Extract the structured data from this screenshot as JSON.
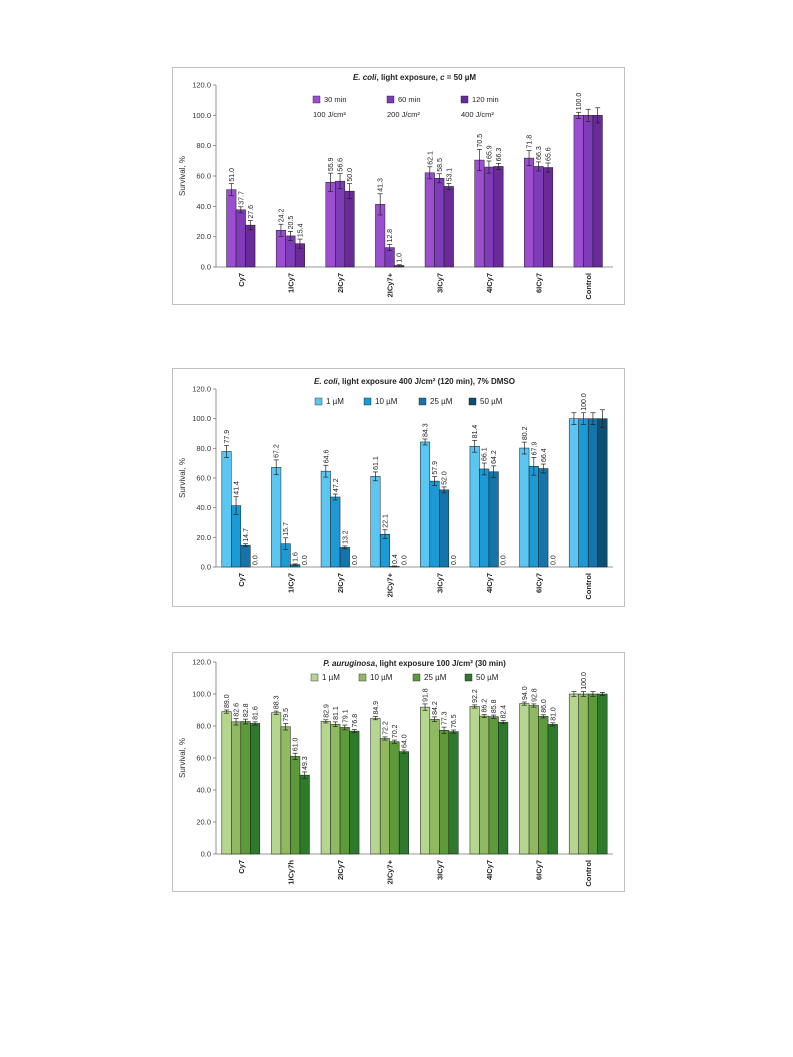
{
  "chart_data": [
    {
      "type": "bar",
      "title_parts": [
        {
          "text": "E. coli",
          "italic": true
        },
        {
          "text": ", light exposure, ",
          "italic": false
        },
        {
          "text": "c",
          "italic": true
        },
        {
          "text": " = 50 µM",
          "italic": false
        }
      ],
      "ylabel": "Survival, %",
      "ylim": [
        0,
        120
      ],
      "yticks": [
        "0.0",
        "20.0",
        "40.0",
        "60.0",
        "80.0",
        "100.0",
        "120.0"
      ],
      "categories": [
        "Cy7",
        "1ICy7",
        "2ICy7",
        "2ICy7+",
        "3ICy7",
        "4ICy7",
        "6ICy7",
        "Control"
      ],
      "series": [
        {
          "name": "30 min",
          "sublabel": "100 J/cm²",
          "color": "#9b4fd0",
          "values": [
            51.0,
            24.2,
            55.9,
            41.3,
            62.1,
            70.5,
            71.8,
            100.0
          ],
          "errors": [
            4.0,
            4.0,
            6.0,
            7.0,
            4.0,
            7.0,
            5.0,
            2.0
          ],
          "labels": [
            "51.0",
            "24.2",
            "55.9",
            "41.3",
            "62.1",
            "70.5",
            "71.8",
            "100.0"
          ]
        },
        {
          "name": "60 min",
          "sublabel": "200 J/cm²",
          "color": "#7e3cb8",
          "values": [
            37.7,
            20.5,
            56.6,
            12.8,
            58.5,
            65.9,
            66.3,
            100.0
          ],
          "errors": [
            2.0,
            3.0,
            5.0,
            2.0,
            3.0,
            4.0,
            3.0,
            4.0
          ],
          "labels": [
            "37.7",
            "20.5",
            "56.6",
            "12.8",
            "58.5",
            "65.9",
            "66.3",
            ""
          ]
        },
        {
          "name": "120 min",
          "sublabel": "400 J/cm²",
          "color": "#6a2a97",
          "values": [
            27.6,
            15.4,
            50.0,
            1.0,
            53.1,
            66.3,
            65.6,
            100.0
          ],
          "errors": [
            3.0,
            3.0,
            5.0,
            0.5,
            2.0,
            2.0,
            3.0,
            5.0
          ],
          "labels": [
            "27.6",
            "15.4",
            "50.0",
            "1.0",
            "53.1",
            "66.3",
            "65.6",
            ""
          ]
        }
      ],
      "legend": "top, inside plot area",
      "grid": false
    },
    {
      "type": "bar",
      "title_parts": [
        {
          "text": "E. coli",
          "italic": true
        },
        {
          "text": ", light exposure 400 J/cm² (120 min), 7% DMSO",
          "italic": false
        }
      ],
      "ylabel": "Survival, %",
      "ylim": [
        0,
        120
      ],
      "yticks": [
        "0.0",
        "20.0",
        "40.0",
        "60.0",
        "80.0",
        "100.0",
        "120.0"
      ],
      "categories": [
        "Cy7",
        "1ICy7",
        "2ICy7",
        "2ICy7+",
        "3ICy7",
        "4ICy7",
        "6ICy7",
        "Control"
      ],
      "series": [
        {
          "name": "1 µM",
          "color": "#5bc6f2",
          "values": [
            77.9,
            67.2,
            64.6,
            61.1,
            84.3,
            81.4,
            80.2,
            100.0
          ],
          "errors": [
            4.0,
            5.0,
            4.0,
            3.0,
            2.0,
            4.0,
            4.0,
            4.0
          ],
          "labels": [
            "77.9",
            "67.2",
            "64.6",
            "61.1",
            "84.3",
            "81.4",
            "80.2",
            ""
          ]
        },
        {
          "name": "10 µM",
          "color": "#1b9ad6",
          "values": [
            41.4,
            15.7,
            47.2,
            22.1,
            57.9,
            66.1,
            67.9,
            100.0
          ],
          "errors": [
            6.0,
            4.0,
            2.0,
            3.0,
            3.0,
            4.0,
            6.0,
            4.0
          ],
          "labels": [
            "41.4",
            "15.7",
            "47.2",
            "22.1",
            "57.9",
            "66.1",
            "67.9",
            "100.0"
          ]
        },
        {
          "name": "25 µM",
          "color": "#1575ab",
          "values": [
            14.7,
            1.6,
            13.2,
            0.4,
            52.0,
            64.2,
            66.4,
            100.0
          ],
          "errors": [
            1.0,
            0.5,
            1.0,
            0.3,
            2.0,
            4.0,
            3.0,
            4.0
          ],
          "labels": [
            "14.7",
            "1.6",
            "13.2",
            "0.4",
            "52.0",
            "64.2",
            "66.4",
            ""
          ]
        },
        {
          "name": "50 µM",
          "color": "#0d4f73",
          "values": [
            0.0,
            0.0,
            0.0,
            0.0,
            0.0,
            0.0,
            0.0,
            100.0
          ],
          "errors": [
            0,
            0,
            0,
            0,
            0,
            0,
            0,
            6.0
          ],
          "labels": [
            "0.0",
            "0.0",
            "0.0",
            "0.0",
            "0.0",
            "0.0",
            "0.0",
            ""
          ]
        }
      ],
      "legend": "top-left, inside plot area",
      "grid": false
    },
    {
      "type": "bar",
      "title_parts": [
        {
          "text": "P. auruginosa",
          "italic": true
        },
        {
          "text": ", light exposure 100 J/cm² (30 min)",
          "italic": false
        }
      ],
      "ylabel": "Survival, %",
      "ylim": [
        0,
        120
      ],
      "yticks": [
        "0.0",
        "20.0",
        "40.0",
        "60.0",
        "80.0",
        "100.0",
        "120.0"
      ],
      "categories": [
        "Cy7",
        "1ICy7h",
        "2ICy7",
        "2ICy7+",
        "3ICy7",
        "4ICy7",
        "6ICy7",
        "Control"
      ],
      "series": [
        {
          "name": "1 µM",
          "color": "#b5d68f",
          "values": [
            89.0,
            88.3,
            82.9,
            84.9,
            91.8,
            92.2,
            94.0,
            100.0
          ],
          "errors": [
            1.0,
            1.0,
            1.0,
            1.0,
            2.0,
            1.0,
            1.0,
            1.5
          ],
          "labels": [
            "89.0",
            "88.3",
            "82.9",
            "84.9",
            "91.8",
            "92.2",
            "94.0",
            ""
          ]
        },
        {
          "name": "10 µM",
          "color": "#8fba62",
          "values": [
            82.6,
            79.5,
            81.1,
            72.2,
            84.2,
            86.2,
            92.8,
            100.0
          ],
          "errors": [
            2.0,
            2.0,
            1.5,
            1.0,
            1.5,
            1.0,
            1.0,
            1.5
          ],
          "labels": [
            "82.6",
            "79.5",
            "81.1",
            "72.2",
            "84.2",
            "86.2",
            "92.8",
            "100.0"
          ]
        },
        {
          "name": "25 µM",
          "color": "#5d9a3a",
          "values": [
            82.8,
            61.0,
            79.1,
            70.2,
            77.3,
            85.8,
            86.0,
            100.0
          ],
          "errors": [
            1.5,
            2.0,
            1.5,
            1.0,
            2.0,
            1.0,
            1.0,
            1.5
          ],
          "labels": [
            "82.8",
            "61.0",
            "79.1",
            "70.2",
            "77.3",
            "85.8",
            "86.0",
            ""
          ]
        },
        {
          "name": "50 µM",
          "color": "#2e7a2d",
          "values": [
            81.6,
            49.3,
            76.8,
            64.0,
            76.5,
            82.4,
            81.0,
            100.0
          ],
          "errors": [
            1.0,
            2.0,
            1.0,
            1.0,
            1.0,
            1.0,
            1.0,
            1.0
          ],
          "labels": [
            "81.6",
            "49.3",
            "76.8",
            "64.0",
            "76.5",
            "82.4",
            "81.0",
            ""
          ]
        }
      ],
      "legend": "top, inside plot area",
      "grid": false
    }
  ]
}
